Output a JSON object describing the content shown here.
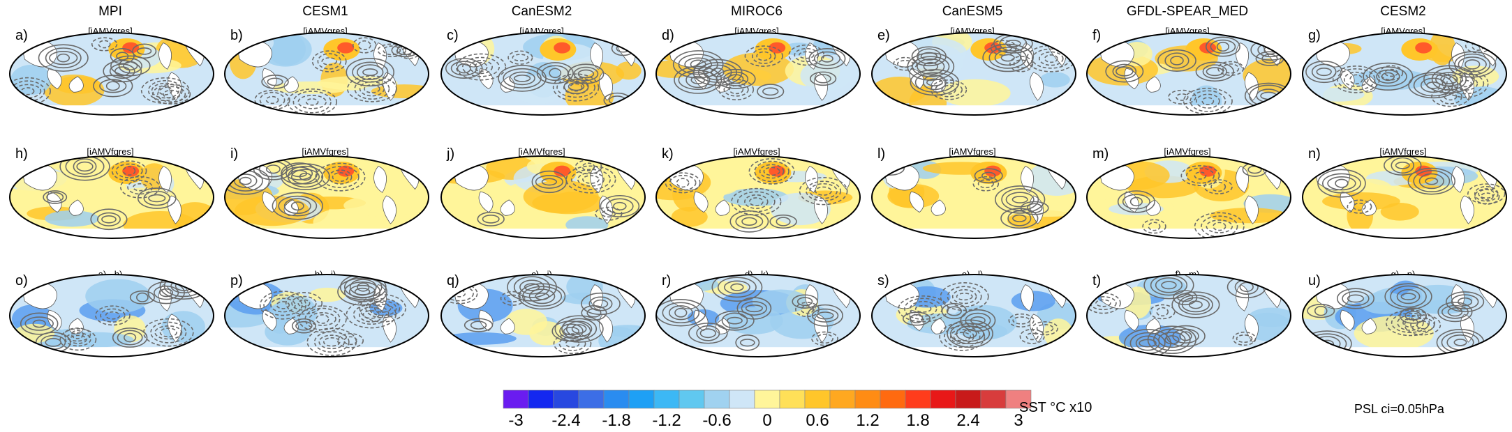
{
  "figure": {
    "models": [
      "MPI",
      "CESM1",
      "CanESM2",
      "MIROC6",
      "CanESM5",
      "GFDL-SPEAR_MED",
      "CESM2"
    ],
    "rows": [
      {
        "type": "gres",
        "panels": [
          {
            "letter": "a)",
            "subtitle": "[iAMVgres]"
          },
          {
            "letter": "b)",
            "subtitle": "[iAMVgres]"
          },
          {
            "letter": "c)",
            "subtitle": "[iAMVgres]"
          },
          {
            "letter": "d)",
            "subtitle": "[iAMVgres]"
          },
          {
            "letter": "e)",
            "subtitle": "[iAMVgres]"
          },
          {
            "letter": "f)",
            "subtitle": "[iAMVgres]"
          },
          {
            "letter": "g)",
            "subtitle": "[iAMVgres]"
          }
        ]
      },
      {
        "type": "fgres",
        "panels": [
          {
            "letter": "h)",
            "subtitle": "[iAMVfgres]"
          },
          {
            "letter": "i)",
            "subtitle": "[iAMVfgres]"
          },
          {
            "letter": "j)",
            "subtitle": "[iAMVfgres]"
          },
          {
            "letter": "k)",
            "subtitle": "[iAMVfgres]"
          },
          {
            "letter": "l)",
            "subtitle": "[iAMVfgres]"
          },
          {
            "letter": "m)",
            "subtitle": "[iAMVfgres]"
          },
          {
            "letter": "n)",
            "subtitle": "[iAMVfgres]"
          }
        ]
      },
      {
        "type": "diff",
        "panels": [
          {
            "letter": "o)",
            "subtitle": "a) - h)"
          },
          {
            "letter": "p)",
            "subtitle": "b) - i)"
          },
          {
            "letter": "q)",
            "subtitle": "c) - j)"
          },
          {
            "letter": "r)",
            "subtitle": "d) - k)"
          },
          {
            "letter": "s)",
            "subtitle": "e) - l)"
          },
          {
            "letter": "t)",
            "subtitle": "f) - m)"
          },
          {
            "letter": "u)",
            "subtitle": "g) - n)"
          }
        ]
      }
    ]
  },
  "colorbar": {
    "colors": [
      "#6a1cf0",
      "#1428f0",
      "#2848e0",
      "#3c6ee6",
      "#2a8cf0",
      "#1ea0f5",
      "#3cb8f5",
      "#60c8f0",
      "#a0d2f0",
      "#cfe6f7",
      "#fff59a",
      "#ffe058",
      "#ffc62a",
      "#ffa820",
      "#ff8c14",
      "#ff6a10",
      "#ff3c1c",
      "#e81818",
      "#c81a1a",
      "#d83c3c",
      "#ef8080"
    ],
    "ticks": [
      "-3",
      "-2.4",
      "-1.8",
      "-1.2",
      "-0.6",
      "0",
      "0.6",
      "1.2",
      "1.8",
      "2.4",
      "3"
    ],
    "label": "SST °C x10"
  },
  "psl_label": "PSL ci=0.05hPa",
  "shade_colors": {
    "deep_blue": "#5a9ef0",
    "light_blue": "#cfe6f7",
    "mid_blue": "#9fcff0",
    "yellow": "#fff59a",
    "orange": "#ffc62a",
    "red": "#ff5a2a",
    "contour": "#6a6a6a"
  }
}
